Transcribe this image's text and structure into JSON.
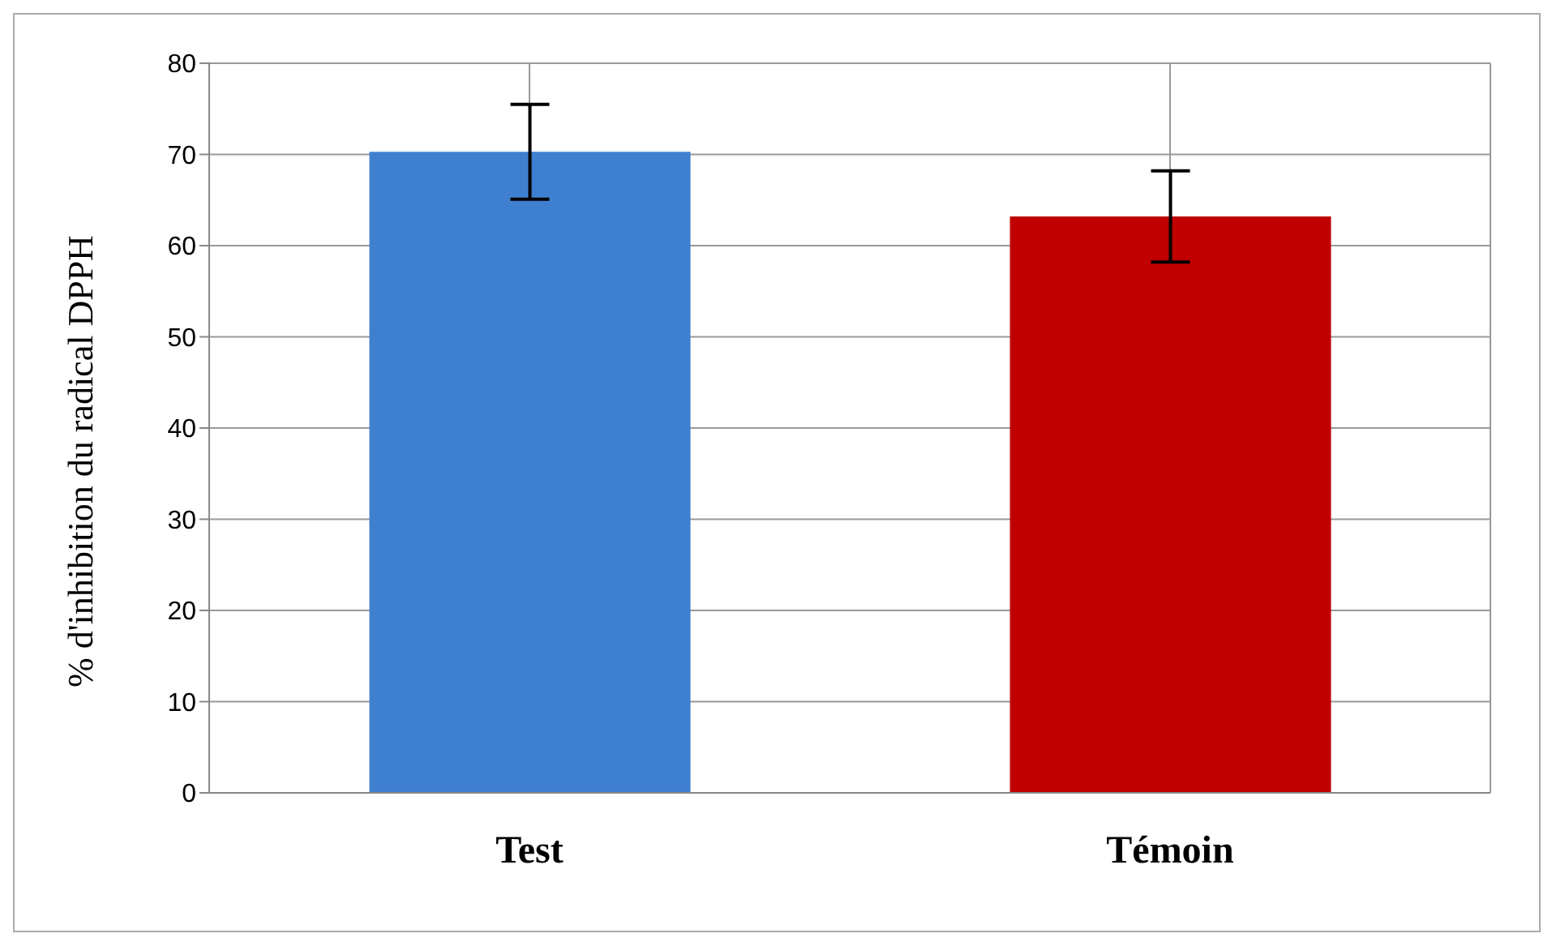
{
  "chart_data": {
    "type": "bar",
    "ylabel": "% d'inhibition du radical DPPH",
    "categories": [
      "Test",
      "Témoin"
    ],
    "values": [
      70.3,
      63.2
    ],
    "colors": [
      "#3f7fd0",
      "#c00000"
    ],
    "errors": [
      5.2,
      5
    ],
    "ylim": [
      0,
      80
    ],
    "yticks": [
      0,
      10,
      20,
      30,
      40,
      50,
      60,
      70,
      80
    ],
    "grid": true
  }
}
